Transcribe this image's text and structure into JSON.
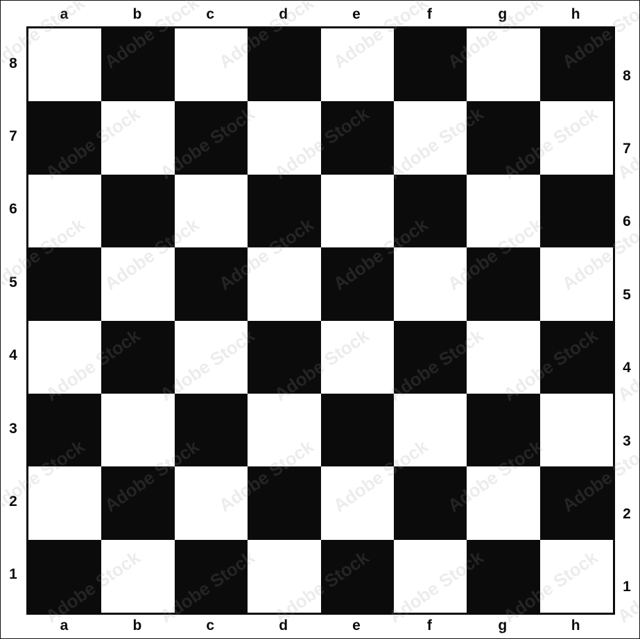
{
  "board": {
    "files": [
      "a",
      "b",
      "c",
      "d",
      "e",
      "f",
      "g",
      "h"
    ],
    "ranks": [
      "8",
      "7",
      "6",
      "5",
      "4",
      "3",
      "2",
      "1"
    ],
    "colors": {
      "dark": "#0b0b0b",
      "light": "#ffffff"
    }
  },
  "watermark": {
    "text": "Adobe Stock"
  }
}
